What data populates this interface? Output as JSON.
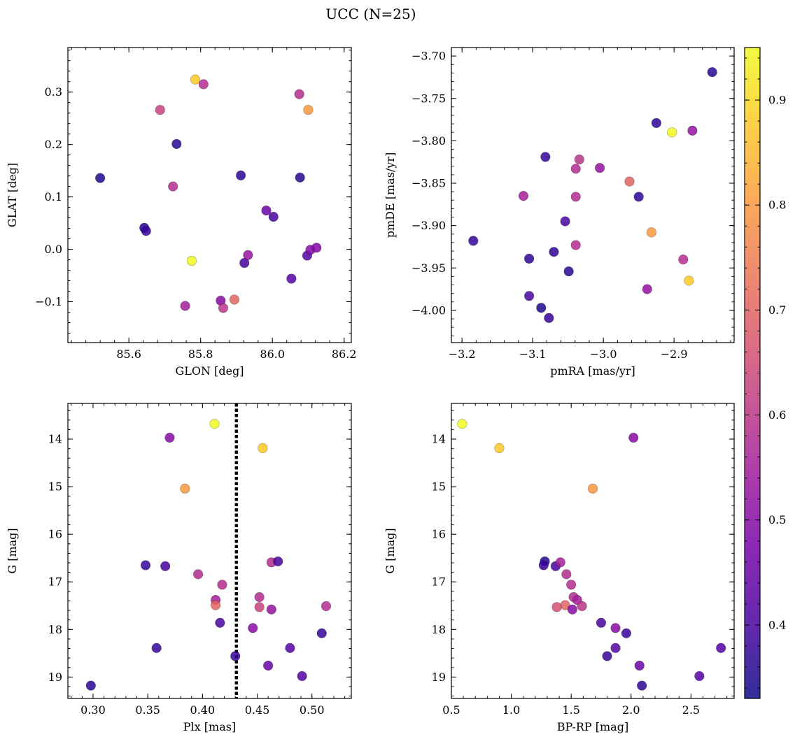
{
  "figure": {
    "title": "UCC (N=25)"
  },
  "colorbar": {
    "range": [
      0.33,
      0.95
    ],
    "ticks": [
      0.4,
      0.5,
      0.6,
      0.7,
      0.8,
      0.9
    ],
    "tick_labels": [
      "0.4",
      "0.5",
      "0.6",
      "0.7",
      "0.8",
      "0.9"
    ],
    "cmap": [
      "#0d0887",
      "#46039f",
      "#7201a8",
      "#9c179e",
      "#bd3786",
      "#d8576b",
      "#ed7953",
      "#fb9f3a",
      "#fdca26",
      "#f0f921"
    ]
  },
  "chart_data": [
    {
      "type": "scatter",
      "name": "glon-glat",
      "xlabel": "GLON [deg]",
      "ylabel": "GLAT [deg]",
      "xlim": [
        85.43,
        86.22
      ],
      "ylim": [
        -0.178,
        0.385
      ],
      "invert_y": false,
      "xticks": [
        85.6,
        85.8,
        86.0,
        86.2
      ],
      "xtick_labels": [
        "85.6",
        "85.8",
        "86.0",
        "86.2"
      ],
      "yticks": [
        -0.1,
        0.0,
        0.1,
        0.2,
        0.3
      ],
      "ytick_labels": [
        "−0.1",
        "0.0",
        "0.1",
        "0.2",
        "0.3"
      ],
      "points": [
        {
          "x": 85.52,
          "y": 0.136,
          "c": 0.35
        },
        {
          "x": 85.733,
          "y": 0.201,
          "c": 0.36
        },
        {
          "x": 85.687,
          "y": 0.266,
          "c": 0.63
        },
        {
          "x": 85.723,
          "y": 0.12,
          "c": 0.58
        },
        {
          "x": 85.785,
          "y": 0.324,
          "c": 0.88
        },
        {
          "x": 85.808,
          "y": 0.315,
          "c": 0.58
        },
        {
          "x": 85.643,
          "y": 0.041,
          "c": 0.36
        },
        {
          "x": 85.648,
          "y": 0.035,
          "c": 0.38
        },
        {
          "x": 85.775,
          "y": -0.022,
          "c": 0.95
        },
        {
          "x": 85.757,
          "y": -0.108,
          "c": 0.55
        },
        {
          "x": 85.856,
          "y": -0.098,
          "c": 0.5
        },
        {
          "x": 85.863,
          "y": -0.112,
          "c": 0.6
        },
        {
          "x": 85.894,
          "y": -0.096,
          "c": 0.7
        },
        {
          "x": 85.912,
          "y": 0.141,
          "c": 0.37
        },
        {
          "x": 85.922,
          "y": -0.026,
          "c": 0.4
        },
        {
          "x": 85.932,
          "y": -0.011,
          "c": 0.52
        },
        {
          "x": 85.983,
          "y": 0.074,
          "c": 0.45
        },
        {
          "x": 86.003,
          "y": 0.062,
          "c": 0.4
        },
        {
          "x": 86.053,
          "y": -0.056,
          "c": 0.42
        },
        {
          "x": 86.075,
          "y": 0.296,
          "c": 0.58
        },
        {
          "x": 86.077,
          "y": 0.137,
          "c": 0.36
        },
        {
          "x": 86.1,
          "y": 0.266,
          "c": 0.8
        },
        {
          "x": 86.097,
          "y": -0.012,
          "c": 0.42
        },
        {
          "x": 86.106,
          "y": -0.001,
          "c": 0.5
        },
        {
          "x": 86.123,
          "y": 0.003,
          "c": 0.49
        }
      ]
    },
    {
      "type": "scatter",
      "name": "pmra-pmde",
      "xlabel": "pmRA [mas/yr]",
      "ylabel": "pmDE [mas/yr]",
      "xlim": [
        -3.215,
        -2.815
      ],
      "ylim": [
        -4.038,
        -3.69
      ],
      "invert_y": false,
      "xticks": [
        -3.2,
        -3.1,
        -3.0,
        -2.9
      ],
      "xtick_labels": [
        "−3.2",
        "−3.1",
        "−3.0",
        "−2.9"
      ],
      "yticks": [
        -4.0,
        -3.95,
        -3.9,
        -3.85,
        -3.8,
        -3.75,
        -3.7
      ],
      "ytick_labels": [
        "−4.00",
        "−3.95",
        "−3.90",
        "−3.85",
        "−3.80",
        "−3.75",
        "−3.70"
      ],
      "points": [
        {
          "x": -3.184,
          "y": -3.918,
          "c": 0.38
        },
        {
          "x": -3.113,
          "y": -3.865,
          "c": 0.55
        },
        {
          "x": -3.105,
          "y": -3.939,
          "c": 0.37
        },
        {
          "x": -3.105,
          "y": -3.983,
          "c": 0.4
        },
        {
          "x": -3.088,
          "y": -3.997,
          "c": 0.35
        },
        {
          "x": -3.082,
          "y": -3.819,
          "c": 0.38
        },
        {
          "x": -3.077,
          "y": -4.009,
          "c": 0.38
        },
        {
          "x": -3.07,
          "y": -3.931,
          "c": 0.37
        },
        {
          "x": -3.054,
          "y": -3.895,
          "c": 0.4
        },
        {
          "x": -3.049,
          "y": -3.954,
          "c": 0.36
        },
        {
          "x": -3.039,
          "y": -3.833,
          "c": 0.58
        },
        {
          "x": -3.039,
          "y": -3.866,
          "c": 0.58
        },
        {
          "x": -3.039,
          "y": -3.923,
          "c": 0.58
        },
        {
          "x": -3.034,
          "y": -3.822,
          "c": 0.6
        },
        {
          "x": -3.005,
          "y": -3.832,
          "c": 0.52
        },
        {
          "x": -2.963,
          "y": -3.848,
          "c": 0.7
        },
        {
          "x": -2.95,
          "y": -3.866,
          "c": 0.37
        },
        {
          "x": -2.938,
          "y": -3.975,
          "c": 0.52
        },
        {
          "x": -2.932,
          "y": -3.908,
          "c": 0.8
        },
        {
          "x": -2.925,
          "y": -3.779,
          "c": 0.37
        },
        {
          "x": -2.903,
          "y": -3.79,
          "c": 0.95
        },
        {
          "x": -2.887,
          "y": -3.94,
          "c": 0.58
        },
        {
          "x": -2.879,
          "y": -3.965,
          "c": 0.88
        },
        {
          "x": -2.874,
          "y": -3.788,
          "c": 0.52
        },
        {
          "x": -2.846,
          "y": -3.719,
          "c": 0.36
        }
      ]
    },
    {
      "type": "scatter",
      "name": "plx-g",
      "xlabel": "Plx [mas]",
      "ylabel": "G [mag]",
      "xlim": [
        0.277,
        0.536
      ],
      "ylim": [
        13.25,
        19.45
      ],
      "invert_y": true,
      "vline": 0.431,
      "xticks": [
        0.3,
        0.35,
        0.4,
        0.45,
        0.5
      ],
      "xtick_labels": [
        "0.30",
        "0.35",
        "0.40",
        "0.45",
        "0.50"
      ],
      "yticks": [
        14,
        15,
        16,
        17,
        18,
        19
      ],
      "ytick_labels": [
        "14",
        "15",
        "16",
        "17",
        "18",
        "19"
      ],
      "points": [
        {
          "x": 0.298,
          "y": 19.18,
          "c": 0.37
        },
        {
          "x": 0.348,
          "y": 16.65,
          "c": 0.38
        },
        {
          "x": 0.358,
          "y": 18.39,
          "c": 0.38
        },
        {
          "x": 0.366,
          "y": 16.67,
          "c": 0.4
        },
        {
          "x": 0.37,
          "y": 13.97,
          "c": 0.5
        },
        {
          "x": 0.384,
          "y": 15.04,
          "c": 0.8
        },
        {
          "x": 0.396,
          "y": 16.84,
          "c": 0.58
        },
        {
          "x": 0.411,
          "y": 13.68,
          "c": 0.95
        },
        {
          "x": 0.412,
          "y": 17.38,
          "c": 0.55
        },
        {
          "x": 0.412,
          "y": 17.49,
          "c": 0.7
        },
        {
          "x": 0.416,
          "y": 17.86,
          "c": 0.4
        },
        {
          "x": 0.418,
          "y": 17.06,
          "c": 0.58
        },
        {
          "x": 0.43,
          "y": 18.56,
          "c": 0.38
        },
        {
          "x": 0.446,
          "y": 17.97,
          "c": 0.5
        },
        {
          "x": 0.452,
          "y": 17.32,
          "c": 0.58
        },
        {
          "x": 0.452,
          "y": 17.53,
          "c": 0.63
        },
        {
          "x": 0.455,
          "y": 14.19,
          "c": 0.88
        },
        {
          "x": 0.46,
          "y": 18.76,
          "c": 0.45
        },
        {
          "x": 0.463,
          "y": 16.59,
          "c": 0.58
        },
        {
          "x": 0.463,
          "y": 17.58,
          "c": 0.52
        },
        {
          "x": 0.469,
          "y": 16.57,
          "c": 0.4
        },
        {
          "x": 0.48,
          "y": 18.39,
          "c": 0.42
        },
        {
          "x": 0.491,
          "y": 18.98,
          "c": 0.42
        },
        {
          "x": 0.509,
          "y": 18.08,
          "c": 0.38
        },
        {
          "x": 0.513,
          "y": 17.51,
          "c": 0.58
        }
      ]
    },
    {
      "type": "scatter",
      "name": "bprp-g",
      "xlabel": "BP-RP [mag]",
      "ylabel": "G [mag]",
      "xlim": [
        0.5,
        2.86
      ],
      "ylim": [
        13.25,
        19.45
      ],
      "invert_y": true,
      "xticks": [
        0.5,
        1.0,
        1.5,
        2.0,
        2.5
      ],
      "xtick_labels": [
        "0.5",
        "1.0",
        "1.5",
        "2.0",
        "2.5"
      ],
      "yticks": [
        14,
        15,
        16,
        17,
        18,
        19
      ],
      "ytick_labels": [
        "14",
        "15",
        "16",
        "17",
        "18",
        "19"
      ],
      "points": [
        {
          "x": 0.59,
          "y": 13.68,
          "c": 0.95
        },
        {
          "x": 0.9,
          "y": 14.19,
          "c": 0.88
        },
        {
          "x": 1.28,
          "y": 16.57,
          "c": 0.35
        },
        {
          "x": 1.27,
          "y": 16.65,
          "c": 0.38
        },
        {
          "x": 1.37,
          "y": 16.67,
          "c": 0.4
        },
        {
          "x": 1.41,
          "y": 16.59,
          "c": 0.55
        },
        {
          "x": 1.46,
          "y": 16.84,
          "c": 0.58
        },
        {
          "x": 1.5,
          "y": 17.06,
          "c": 0.58
        },
        {
          "x": 1.52,
          "y": 17.32,
          "c": 0.58
        },
        {
          "x": 1.55,
          "y": 17.38,
          "c": 0.55
        },
        {
          "x": 1.45,
          "y": 17.49,
          "c": 0.7
        },
        {
          "x": 1.38,
          "y": 17.53,
          "c": 0.66
        },
        {
          "x": 1.51,
          "y": 17.58,
          "c": 0.5
        },
        {
          "x": 1.59,
          "y": 17.51,
          "c": 0.6
        },
        {
          "x": 1.68,
          "y": 15.04,
          "c": 0.8
        },
        {
          "x": 1.75,
          "y": 17.86,
          "c": 0.4
        },
        {
          "x": 1.87,
          "y": 17.97,
          "c": 0.5
        },
        {
          "x": 1.96,
          "y": 18.08,
          "c": 0.38
        },
        {
          "x": 1.8,
          "y": 18.56,
          "c": 0.38
        },
        {
          "x": 1.87,
          "y": 18.39,
          "c": 0.42
        },
        {
          "x": 2.02,
          "y": 13.97,
          "c": 0.5
        },
        {
          "x": 2.07,
          "y": 18.76,
          "c": 0.45
        },
        {
          "x": 2.09,
          "y": 19.18,
          "c": 0.37
        },
        {
          "x": 2.57,
          "y": 18.98,
          "c": 0.42
        },
        {
          "x": 2.75,
          "y": 18.39,
          "c": 0.42
        }
      ]
    }
  ]
}
